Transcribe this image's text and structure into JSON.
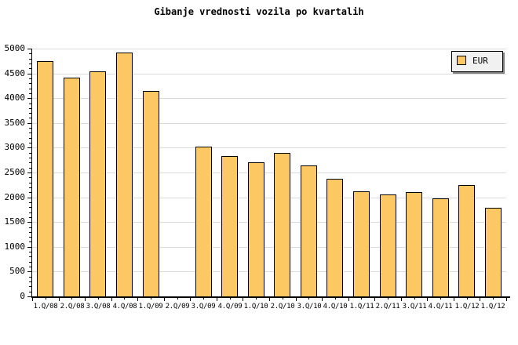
{
  "chart_data": {
    "type": "bar",
    "title": "Gibanje vrednosti vozila po kvartalih",
    "categories": [
      "1.Q/08",
      "2.Q/08",
      "3.Q/08",
      "4.Q/08",
      "1.Q/09",
      "2.Q/09",
      "3.Q/09",
      "4.Q/09",
      "1.Q/10",
      "2.Q/10",
      "3.Q/10",
      "4.Q/10",
      "1.Q/11",
      "2.Q/11",
      "3.Q/11",
      "4.Q/11",
      "1.Q/12",
      "1.Q/12"
    ],
    "series": [
      {
        "name": "EUR",
        "values": [
          4740,
          4410,
          4540,
          4920,
          4140,
          0,
          3030,
          2830,
          2700,
          2890,
          2640,
          2370,
          2120,
          2050,
          2110,
          1970,
          2240,
          1790
        ]
      }
    ],
    "missing_categories": [
      "2.Q/09"
    ],
    "xlabel": "",
    "ylabel": "",
    "ylim": [
      0,
      5000
    ],
    "y_ticks": [
      0,
      500,
      1000,
      1500,
      2000,
      2500,
      3000,
      3500,
      4000,
      4500,
      5000
    ],
    "ytick_minor_step": 100,
    "grid": "horizontal-major",
    "legend_position": "top-right",
    "legend_label": "EUR",
    "colors": {
      "bar_fill": "#FCC864",
      "bar_border": "#000000",
      "gridline": "#DCDCDC",
      "axis": "#000000",
      "background": "#FFFFFF",
      "legend_bg": "#F1F1F1",
      "legend_shadow": "#808080",
      "text": "#000000"
    }
  }
}
